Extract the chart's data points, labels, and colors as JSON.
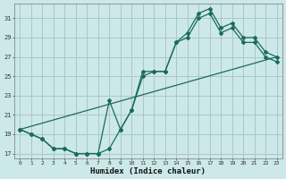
{
  "xlabel": "Humidex (Indice chaleur)",
  "bg_color": "#cce8e8",
  "grid_color": "#aac8c8",
  "line_color": "#1a6b5a",
  "xlim": [
    -0.5,
    23.5
  ],
  "ylim": [
    16.5,
    32.5
  ],
  "xticks": [
    0,
    1,
    2,
    3,
    4,
    5,
    6,
    7,
    8,
    9,
    10,
    11,
    12,
    13,
    14,
    15,
    16,
    17,
    18,
    19,
    20,
    21,
    22,
    23
  ],
  "yticks": [
    17,
    19,
    21,
    23,
    25,
    27,
    29,
    31
  ],
  "curve_main": [
    19.5,
    19.0,
    18.5,
    17.5,
    17.5,
    17.0,
    17.0,
    17.0,
    17.5,
    19.5,
    21.5,
    25.5,
    25.5,
    25.5,
    28.5,
    29.5,
    31.5,
    32.0,
    30.0,
    30.5,
    29.0,
    29.0,
    27.5,
    27.0
  ],
  "curve_dip": [
    19.5,
    19.0,
    18.5,
    17.5,
    17.5,
    17.0,
    17.0,
    17.0,
    22.5,
    19.5,
    21.5,
    25.0,
    25.5,
    25.5,
    28.5,
    29.0,
    31.0,
    31.5,
    29.5,
    30.0,
    28.5,
    28.5,
    27.0,
    26.5
  ],
  "trend_x": [
    0,
    23
  ],
  "trend_y": [
    19.5,
    27.0
  ]
}
